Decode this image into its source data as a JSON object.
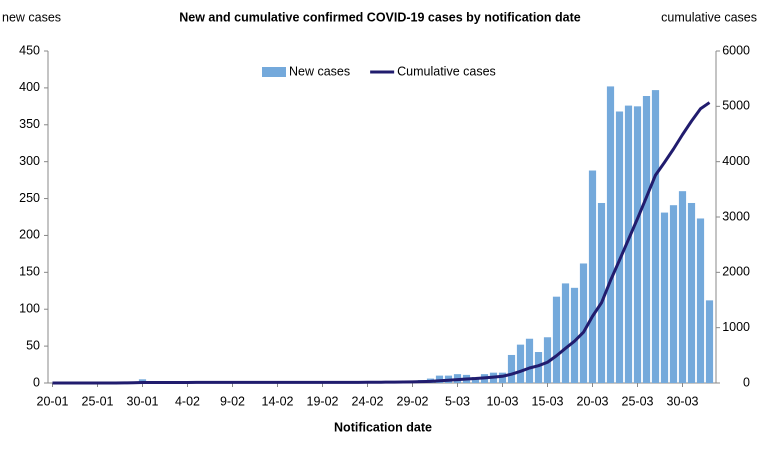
{
  "chart_data": {
    "type": "bar-line",
    "title": "New and cumulative confirmed COVID-19 cases by notification date",
    "y_label": "new cases",
    "y2_label": "cumulative cases",
    "x_label": "Notification date",
    "categories": [
      "20-01",
      null,
      null,
      null,
      null,
      "25-01",
      null,
      null,
      null,
      null,
      "30-01",
      null,
      null,
      null,
      null,
      "4-02",
      null,
      null,
      null,
      null,
      "9-02",
      null,
      null,
      null,
      null,
      "14-02",
      null,
      null,
      null,
      null,
      "19-02",
      null,
      null,
      null,
      null,
      "24-02",
      null,
      null,
      null,
      null,
      "29-02",
      null,
      null,
      null,
      null,
      "5-03",
      null,
      null,
      null,
      null,
      "10-03",
      null,
      null,
      null,
      null,
      "15-03",
      null,
      null,
      null,
      null,
      "20-03",
      null,
      null,
      null,
      null,
      "25-03",
      null,
      null,
      null,
      null,
      "30-03",
      null,
      null,
      null
    ],
    "series": [
      {
        "name": "New cases",
        "type": "bar",
        "color": "#74a9db",
        "values": [
          0,
          0,
          0,
          0,
          0,
          1,
          0,
          0,
          1,
          2,
          5,
          0,
          0,
          0,
          1,
          0,
          1,
          0,
          0,
          0,
          0,
          0,
          0,
          0,
          0,
          0,
          0,
          0,
          0,
          0,
          0,
          0,
          0,
          0,
          0,
          2,
          1,
          1,
          1,
          1,
          3,
          4,
          6,
          10,
          10,
          12,
          11,
          8,
          12,
          14,
          14,
          38,
          52,
          60,
          42,
          62,
          117,
          135,
          129,
          162,
          288,
          244,
          402,
          368,
          376,
          375,
          389,
          397,
          231,
          241,
          260,
          244,
          223,
          112
        ]
      },
      {
        "name": "Cumulative cases",
        "type": "line",
        "axis": "y2",
        "color": "#211c6e",
        "values": [
          0,
          0,
          0,
          0,
          0,
          1,
          1,
          1,
          2,
          4,
          9,
          9,
          9,
          9,
          10,
          10,
          11,
          11,
          11,
          11,
          11,
          11,
          11,
          11,
          11,
          11,
          11,
          11,
          11,
          11,
          11,
          11,
          11,
          11,
          11,
          13,
          14,
          15,
          16,
          17,
          20,
          24,
          30,
          40,
          50,
          62,
          73,
          81,
          93,
          107,
          121,
          159,
          211,
          271,
          313,
          375,
          492,
          627,
          756,
          918,
          1206,
          1450,
          1852,
          2220,
          2596,
          2971,
          3360,
          3757,
          3988,
          4229,
          4489,
          4733,
          4956,
          5068
        ]
      }
    ],
    "ylim": [
      0,
      450
    ],
    "yticks": [
      0,
      50,
      100,
      150,
      200,
      250,
      300,
      350,
      400,
      450
    ],
    "y2lim": [
      0,
      6000
    ],
    "y2ticks": [
      0,
      1000,
      2000,
      3000,
      4000,
      5000,
      6000
    ],
    "legend": "top"
  }
}
